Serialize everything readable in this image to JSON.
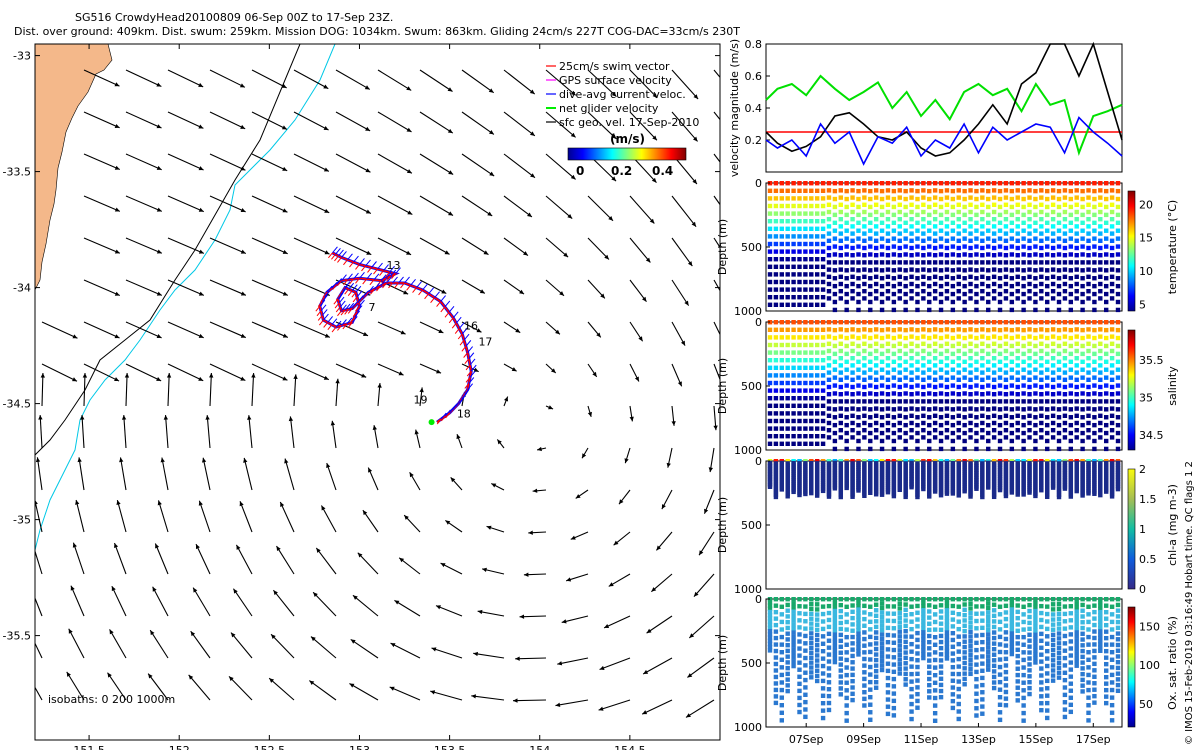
{
  "title_line1": "SG516 CrowdyHead20100809 06-Sep 00Z to 17-Sep 23Z.",
  "title_line2": "Dist. over ground: 409km. Dist. swum: 259km. Mission DOG: 1034km. Swum: 863km. Gliding 24cm/s 227T COG-DAC=33cm/s 230T",
  "copyright": "© IMOS 15-Feb-2019 03:16:49 Hobart time. QC flags 1  2",
  "colors": {
    "land": "#f4b88a",
    "coast": "#000000",
    "isobath_200": "#00c8e6",
    "isobath_1000": "#000000",
    "swim": "#ff0000",
    "gps": "#ff00ff",
    "dac": "#0000ff",
    "net": "#00ee00",
    "geo": "#000000"
  },
  "chart_data": [
    {
      "type": "scatter",
      "title": "SG516 CrowdyHead20100809 06-Sep 00Z to 17-Sep 23Z.",
      "xlim": [
        151.2,
        155.0
      ],
      "ylim": [
        -35.95,
        -32.95
      ],
      "xticks": [
        "151.5",
        "152",
        "152.5",
        "153",
        "153.5",
        "154",
        "154.5"
      ],
      "xtick_values": [
        151.5,
        152,
        152.5,
        153,
        153.5,
        154,
        154.5
      ],
      "yticks": [
        "-33",
        "-33.5",
        "-34",
        "-34.5",
        "-35",
        "-35.5"
      ],
      "ytick_values": [
        -33,
        -33.5,
        -34,
        -34.5,
        -35,
        -35.5
      ],
      "legend": {
        "placement": "top-right",
        "entries": [
          {
            "label": "25cm/s swim vector",
            "color": "#ff0000"
          },
          {
            "label": "GPS surface velocity",
            "color": "#ff00ff"
          },
          {
            "label": "dive-avg current veloc.",
            "color": "#0000ff"
          },
          {
            "label": "net glider velocity",
            "color": "#00ee00"
          },
          {
            "label": "sfc geo. vel. 17-Sep-2010",
            "color": "#000000"
          }
        ]
      },
      "colorbar": {
        "label": "(m/s)",
        "ticks": [
          "0",
          "0.2",
          "0.4"
        ],
        "range": [
          0,
          0.5
        ]
      },
      "isobaths_label": "isobaths: 0   200   1000m",
      "day_labels": [
        {
          "text": "7",
          "lon": 153.05,
          "lat": -34.1
        },
        {
          "text": "13",
          "lon": 153.15,
          "lat": -33.92
        },
        {
          "text": "16",
          "lon": 153.58,
          "lat": -34.18
        },
        {
          "text": "17",
          "lon": 153.66,
          "lat": -34.25
        },
        {
          "text": "18",
          "lon": 153.54,
          "lat": -34.56
        },
        {
          "text": "19",
          "lon": 153.3,
          "lat": -34.5
        }
      ],
      "track": [
        [
          152.85,
          -33.85
        ],
        [
          152.9,
          -33.87
        ],
        [
          153.0,
          -33.9
        ],
        [
          153.1,
          -33.92
        ],
        [
          153.2,
          -33.94
        ],
        [
          153.12,
          -33.97
        ],
        [
          153.0,
          -33.96
        ],
        [
          152.9,
          -33.97
        ],
        [
          152.82,
          -34.02
        ],
        [
          152.78,
          -34.08
        ],
        [
          152.8,
          -34.14
        ],
        [
          152.87,
          -34.17
        ],
        [
          152.96,
          -34.15
        ],
        [
          153.0,
          -34.08
        ],
        [
          152.98,
          -34.02
        ],
        [
          152.92,
          -34.0
        ],
        [
          152.88,
          -34.05
        ],
        [
          152.9,
          -34.1
        ],
        [
          152.96,
          -34.09
        ],
        [
          153.05,
          -34.02
        ],
        [
          153.15,
          -33.98
        ],
        [
          153.25,
          -33.98
        ],
        [
          153.35,
          -34.01
        ],
        [
          153.45,
          -34.06
        ],
        [
          153.52,
          -34.13
        ],
        [
          153.57,
          -34.2
        ],
        [
          153.6,
          -34.28
        ],
        [
          153.62,
          -34.36
        ],
        [
          153.6,
          -34.44
        ],
        [
          153.55,
          -34.5
        ],
        [
          153.5,
          -34.54
        ],
        [
          153.43,
          -34.58
        ]
      ],
      "track_end": {
        "lon": 153.4,
        "lat": -34.58
      }
    },
    {
      "type": "line",
      "ylabel": "velocity magnitude (m/s)",
      "ylim": [
        0,
        0.8
      ],
      "yticks": [
        "0.8",
        "0.6",
        "0.4",
        "0.2"
      ],
      "ytick_values": [
        0.8,
        0.6,
        0.4,
        0.2
      ],
      "x_day_range": [
        5.6,
        18.0
      ],
      "series": [
        {
          "color": "#ff0000",
          "x": [
            5.6,
            18.0
          ],
          "values": [
            0.25,
            0.25
          ]
        },
        {
          "color": "#00e000",
          "x": [
            5.6,
            6.0,
            6.5,
            7.0,
            7.5,
            8.0,
            8.5,
            9.0,
            9.5,
            10.0,
            10.5,
            11.0,
            11.5,
            12.0,
            12.5,
            13.0,
            13.5,
            14.0,
            14.5,
            15.0,
            15.5,
            16.0,
            16.5,
            17.0,
            17.5,
            18.0
          ],
          "values": [
            0.45,
            0.52,
            0.55,
            0.48,
            0.6,
            0.52,
            0.45,
            0.5,
            0.56,
            0.4,
            0.5,
            0.35,
            0.45,
            0.33,
            0.5,
            0.55,
            0.48,
            0.52,
            0.38,
            0.55,
            0.42,
            0.45,
            0.12,
            0.35,
            0.38,
            0.42
          ]
        },
        {
          "color": "#000000",
          "x": [
            5.6,
            6.0,
            6.5,
            7.0,
            7.5,
            8.0,
            8.5,
            9.0,
            9.5,
            10.0,
            10.5,
            11.0,
            11.5,
            12.0,
            12.5,
            13.0,
            13.5,
            14.0,
            14.5,
            15.0,
            15.5,
            16.0,
            16.5,
            17.0,
            17.5,
            18.0
          ],
          "values": [
            0.25,
            0.18,
            0.13,
            0.16,
            0.22,
            0.35,
            0.37,
            0.3,
            0.22,
            0.2,
            0.25,
            0.15,
            0.1,
            0.12,
            0.2,
            0.3,
            0.42,
            0.3,
            0.55,
            0.62,
            0.8,
            0.85,
            0.6,
            0.82,
            0.5,
            0.2
          ]
        },
        {
          "color": "#0000ff",
          "x": [
            5.6,
            6.0,
            6.5,
            7.0,
            7.5,
            8.0,
            8.5,
            9.0,
            9.5,
            10.0,
            10.5,
            11.0,
            11.5,
            12.0,
            12.5,
            13.0,
            13.5,
            14.0,
            14.5,
            15.0,
            15.5,
            16.0,
            16.5,
            17.0,
            17.5,
            18.0
          ],
          "values": [
            0.2,
            0.15,
            0.2,
            0.1,
            0.3,
            0.18,
            0.25,
            0.05,
            0.22,
            0.18,
            0.28,
            0.1,
            0.2,
            0.15,
            0.3,
            0.12,
            0.28,
            0.2,
            0.25,
            0.3,
            0.28,
            0.12,
            0.34,
            0.25,
            0.18,
            0.1
          ]
        }
      ]
    },
    {
      "type": "heatmap",
      "ylabel": "Depth (m)",
      "ylim": [
        1000,
        0
      ],
      "yticks": [
        "0",
        "500",
        "1000"
      ],
      "colorbar": {
        "label": "temperature (°C)",
        "ticks": [
          "20",
          "15",
          "10",
          "5"
        ],
        "range": [
          4,
          22
        ]
      }
    },
    {
      "type": "heatmap",
      "ylabel": "Depth (m)",
      "ylim": [
        1000,
        0
      ],
      "yticks": [
        "0",
        "500",
        "1000"
      ],
      "colorbar": {
        "label": "salinity",
        "ticks": [
          "35.5",
          "35",
          "34.5"
        ],
        "range": [
          34.3,
          35.9
        ]
      }
    },
    {
      "type": "heatmap",
      "ylabel": "Depth (m)",
      "ylim": [
        1000,
        0
      ],
      "yticks": [
        "0",
        "500",
        "1000"
      ],
      "colorbar": {
        "label": "chl-a (mg m-3)",
        "ticks": [
          "2",
          "1.5",
          "1",
          "0.5",
          "0"
        ],
        "range": [
          0,
          2
        ]
      }
    },
    {
      "type": "heatmap",
      "ylabel": "Depth (m)",
      "ylim": [
        1000,
        0
      ],
      "yticks": [
        "0",
        "500",
        "1000"
      ],
      "colorbar": {
        "label": "Ox. sat. ratio (%)",
        "ticks": [
          "150",
          "100",
          "50"
        ],
        "range": [
          20,
          175
        ]
      },
      "xticks": [
        "07Sep",
        "09Sep",
        "11Sep",
        "13Sep",
        "15Sep",
        "17Sep"
      ],
      "xtick_values": [
        7,
        9,
        11,
        13,
        15,
        17
      ]
    }
  ]
}
